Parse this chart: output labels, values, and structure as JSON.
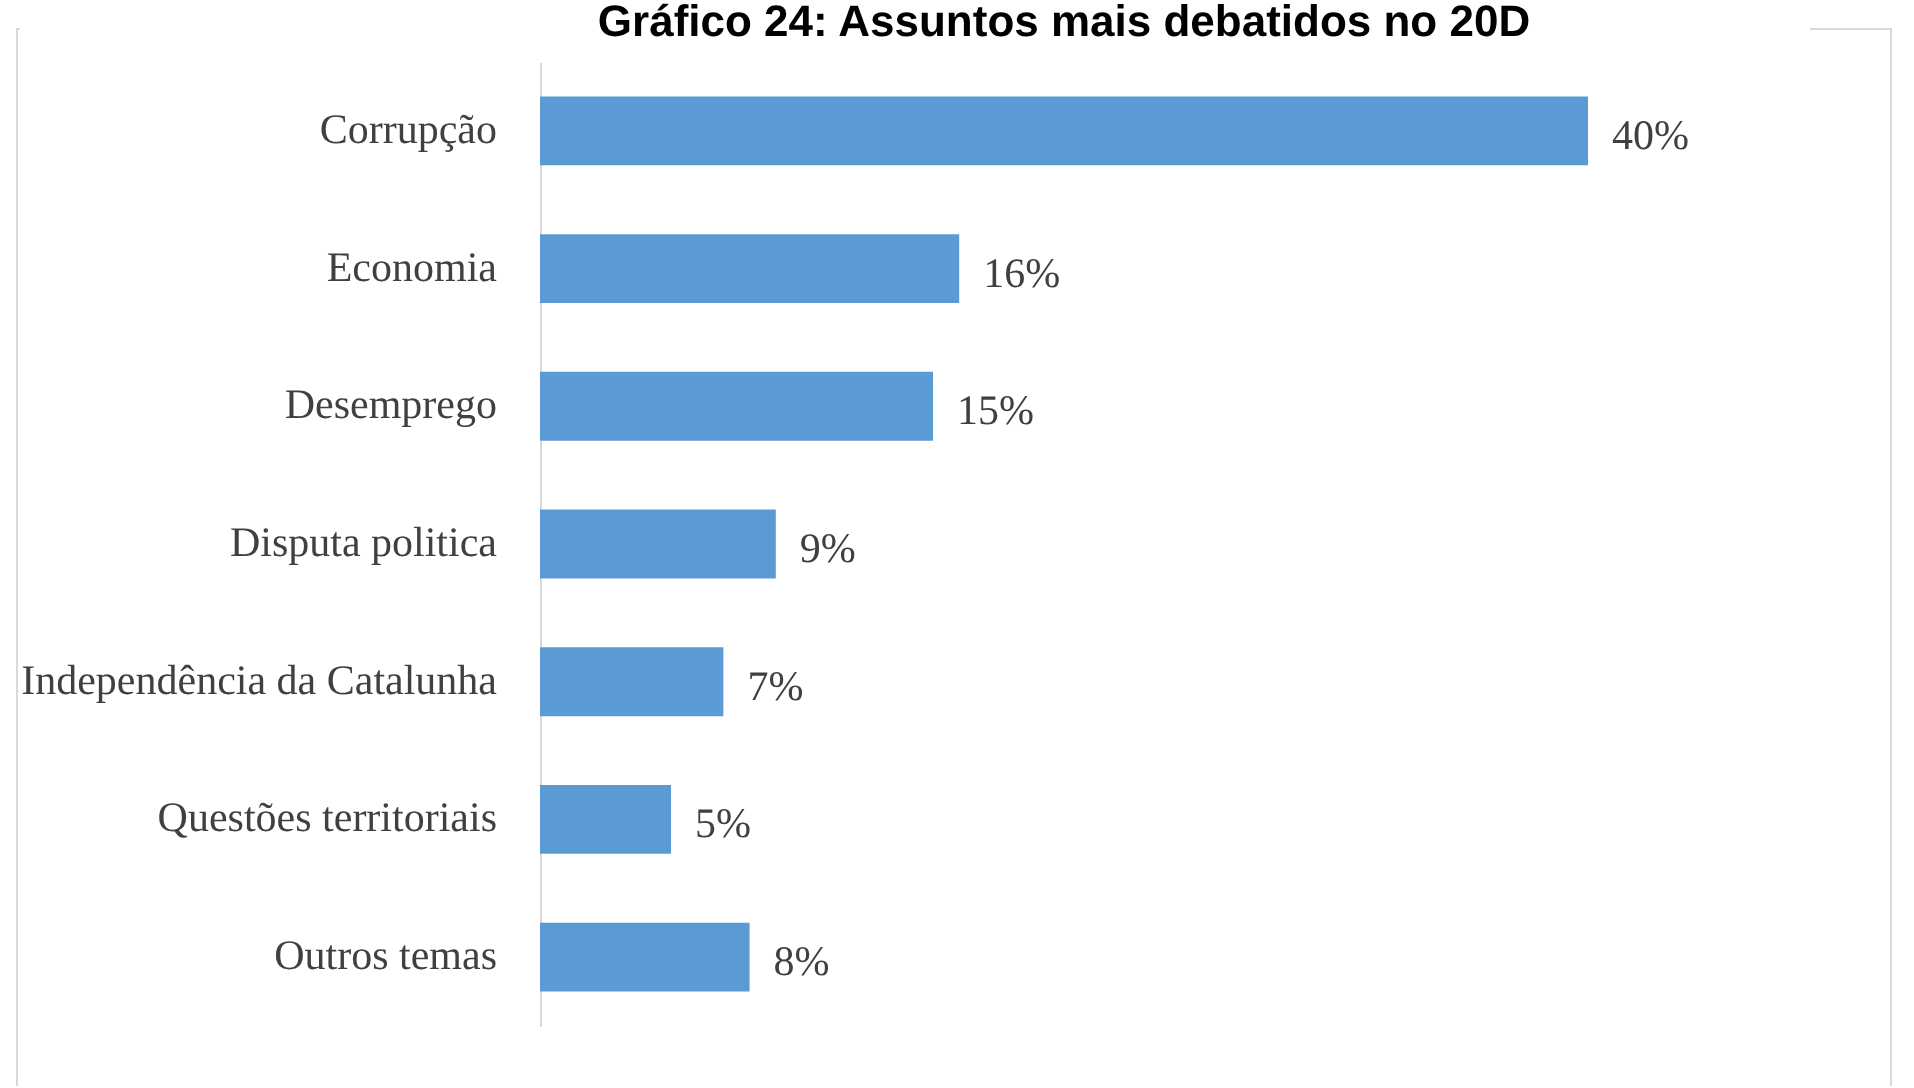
{
  "chart_data": {
    "type": "bar",
    "orientation": "horizontal",
    "title": "Gráfico 24: Assuntos mais debatidos no 20D",
    "categories": [
      "Corrupção",
      "Economia",
      "Desemprego",
      "Disputa politica",
      "Independência da Catalunha",
      "Questões territoriais",
      "Outros temas"
    ],
    "values": [
      40,
      16,
      15,
      9,
      7,
      5,
      8
    ],
    "value_labels": [
      "40%",
      "16%",
      "15%",
      "9%",
      "7%",
      "5%",
      "8%"
    ],
    "color": "#5b9bd5"
  }
}
